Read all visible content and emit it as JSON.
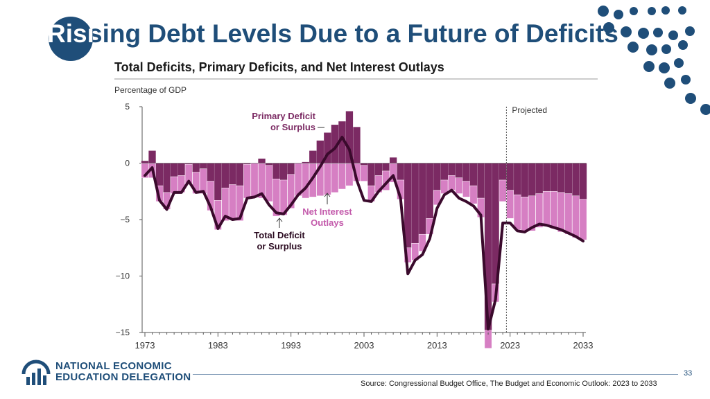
{
  "slide": {
    "title": "Rising Debt Levels Due to a Future of Deficits",
    "highlight": "Risi",
    "page_number": "33",
    "source": "Source: Congressional Budget Office, The Budget and Economic Outlook: 2023 to 2033"
  },
  "logo": {
    "line1": "NATIONAL ECONOMIC",
    "line2": "EDUCATION DELEGATION",
    "icon": "bar-chart-people-icon"
  },
  "colors": {
    "brand": "#1f4e79",
    "primary": "#7b2a63",
    "interest": "#d67fc3",
    "line": "#3a0a2c"
  },
  "chart_data": {
    "type": "bar",
    "title": "Total Deficits, Primary Deficits, and Net Interest Outlays",
    "ylabel": "Percentage of GDP",
    "ylim": [
      -15,
      5
    ],
    "yticks": [
      5,
      0,
      -5,
      -10,
      -15
    ],
    "yticklabels": [
      "5",
      "0",
      "−5",
      "−10",
      "−15"
    ],
    "xticks": [
      1973,
      1983,
      1993,
      2003,
      2013,
      2023,
      2033
    ],
    "projected_from": 2023,
    "projected_label": "Projected",
    "annotations": {
      "primary": [
        "Primary Deficit",
        "or Surplus"
      ],
      "interest": [
        "Net Interest",
        "Outlays"
      ],
      "total": [
        "Total Deficit",
        "or Surplus"
      ]
    },
    "years": [
      1973,
      1974,
      1975,
      1976,
      1977,
      1978,
      1979,
      1980,
      1981,
      1982,
      1983,
      1984,
      1985,
      1986,
      1987,
      1988,
      1989,
      1990,
      1991,
      1992,
      1993,
      1994,
      1995,
      1996,
      1997,
      1998,
      1999,
      2000,
      2001,
      2002,
      2003,
      2004,
      2005,
      2006,
      2007,
      2008,
      2009,
      2010,
      2011,
      2012,
      2013,
      2014,
      2015,
      2016,
      2017,
      2018,
      2019,
      2020,
      2021,
      2022,
      2023,
      2024,
      2025,
      2026,
      2027,
      2028,
      2029,
      2030,
      2031,
      2032,
      2033
    ],
    "series": [
      {
        "name": "Primary Deficit or Surplus",
        "values": [
          0.2,
          1.1,
          -2.0,
          -2.6,
          -1.2,
          -1.1,
          -0.1,
          -0.8,
          -0.5,
          -1.6,
          -3.3,
          -2.2,
          -1.9,
          -2.0,
          -0.1,
          0.0,
          0.4,
          -0.2,
          -1.4,
          -1.5,
          -1.0,
          0.0,
          0.1,
          1.1,
          2.0,
          2.7,
          3.4,
          3.7,
          4.6,
          3.2,
          -0.2,
          -2.0,
          -1.1,
          -0.7,
          0.5,
          -1.5,
          -7.5,
          -7.1,
          -6.3,
          -4.9,
          -2.4,
          -1.5,
          -1.1,
          -1.3,
          -1.6,
          -2.0,
          -3.1,
          -14.8,
          -10.7,
          -1.5,
          -2.4,
          -2.8,
          -3.0,
          -2.9,
          -2.7,
          -2.5,
          -2.5,
          -2.6,
          -2.7,
          -2.9,
          -3.2
        ]
      },
      {
        "name": "Net Interest Outlays",
        "values": [
          -1.3,
          -1.3,
          -1.4,
          -1.5,
          -1.5,
          -1.5,
          -1.7,
          -1.9,
          -2.2,
          -2.6,
          -2.6,
          -2.9,
          -3.1,
          -3.1,
          -3.0,
          -3.0,
          -3.1,
          -3.2,
          -3.3,
          -3.1,
          -3.0,
          -2.9,
          -3.1,
          -3.0,
          -2.9,
          -2.8,
          -2.6,
          -2.3,
          -2.0,
          -1.6,
          -1.4,
          -1.4,
          -1.5,
          -1.7,
          -1.7,
          -1.7,
          -1.3,
          -1.5,
          -1.5,
          -1.4,
          -1.3,
          -1.2,
          -1.3,
          -1.4,
          -1.4,
          -1.6,
          -1.7,
          -1.6,
          -1.6,
          -1.9,
          -2.5,
          -3.1,
          -3.1,
          -3.1,
          -3.0,
          -3.1,
          -3.3,
          -3.5,
          -3.6,
          -3.7,
          -3.6
        ]
      },
      {
        "name": "Total Deficit or Surplus",
        "values": [
          -1.1,
          -0.4,
          -3.3,
          -4.1,
          -2.6,
          -2.6,
          -1.6,
          -2.6,
          -2.5,
          -3.9,
          -5.8,
          -4.7,
          -5.0,
          -4.9,
          -3.1,
          -3.0,
          -2.7,
          -3.7,
          -4.4,
          -4.5,
          -3.7,
          -2.8,
          -2.2,
          -1.3,
          -0.3,
          0.8,
          1.3,
          2.3,
          1.2,
          -1.5,
          -3.3,
          -3.4,
          -2.5,
          -1.8,
          -1.1,
          -3.1,
          -9.8,
          -8.6,
          -8.1,
          -6.7,
          -4.0,
          -2.8,
          -2.4,
          -3.1,
          -3.4,
          -3.8,
          -4.6,
          -14.7,
          -12.1,
          -5.3,
          -5.3,
          -6.0,
          -6.1,
          -5.7,
          -5.4,
          -5.5,
          -5.7,
          -5.9,
          -6.2,
          -6.5,
          -6.9
        ]
      }
    ]
  }
}
